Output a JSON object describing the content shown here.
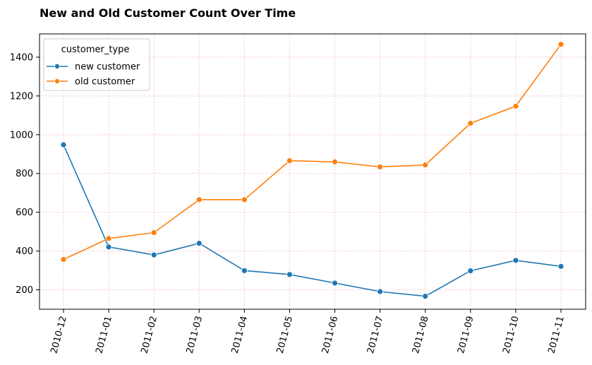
{
  "chart_data": {
    "type": "line",
    "title": "New and Old Customer Count Over Time",
    "xlabel": "",
    "ylabel": "",
    "categories": [
      "2010-12",
      "2011-01",
      "2011-02",
      "2011-03",
      "2011-04",
      "2011-05",
      "2011-06",
      "2011-07",
      "2011-08",
      "2011-09",
      "2011-10",
      "2011-11"
    ],
    "ylim": [
      100,
      1520
    ],
    "yticks": [
      200,
      400,
      600,
      800,
      1000,
      1200,
      1400
    ],
    "grid": true,
    "grid_color": "#f4b6c8",
    "legend": {
      "title": "customer_type",
      "placement": "top-left"
    },
    "series": [
      {
        "name": "new customer",
        "color": "#1f77b4",
        "values": [
          948,
          421,
          380,
          440,
          299,
          279,
          235,
          191,
          167,
          298,
          352,
          321
        ]
      },
      {
        "name": "old customer",
        "color": "#ff7f0e",
        "values": [
          357,
          465,
          495,
          665,
          665,
          866,
          860,
          834,
          844,
          1059,
          1147,
          1466
        ]
      }
    ]
  }
}
